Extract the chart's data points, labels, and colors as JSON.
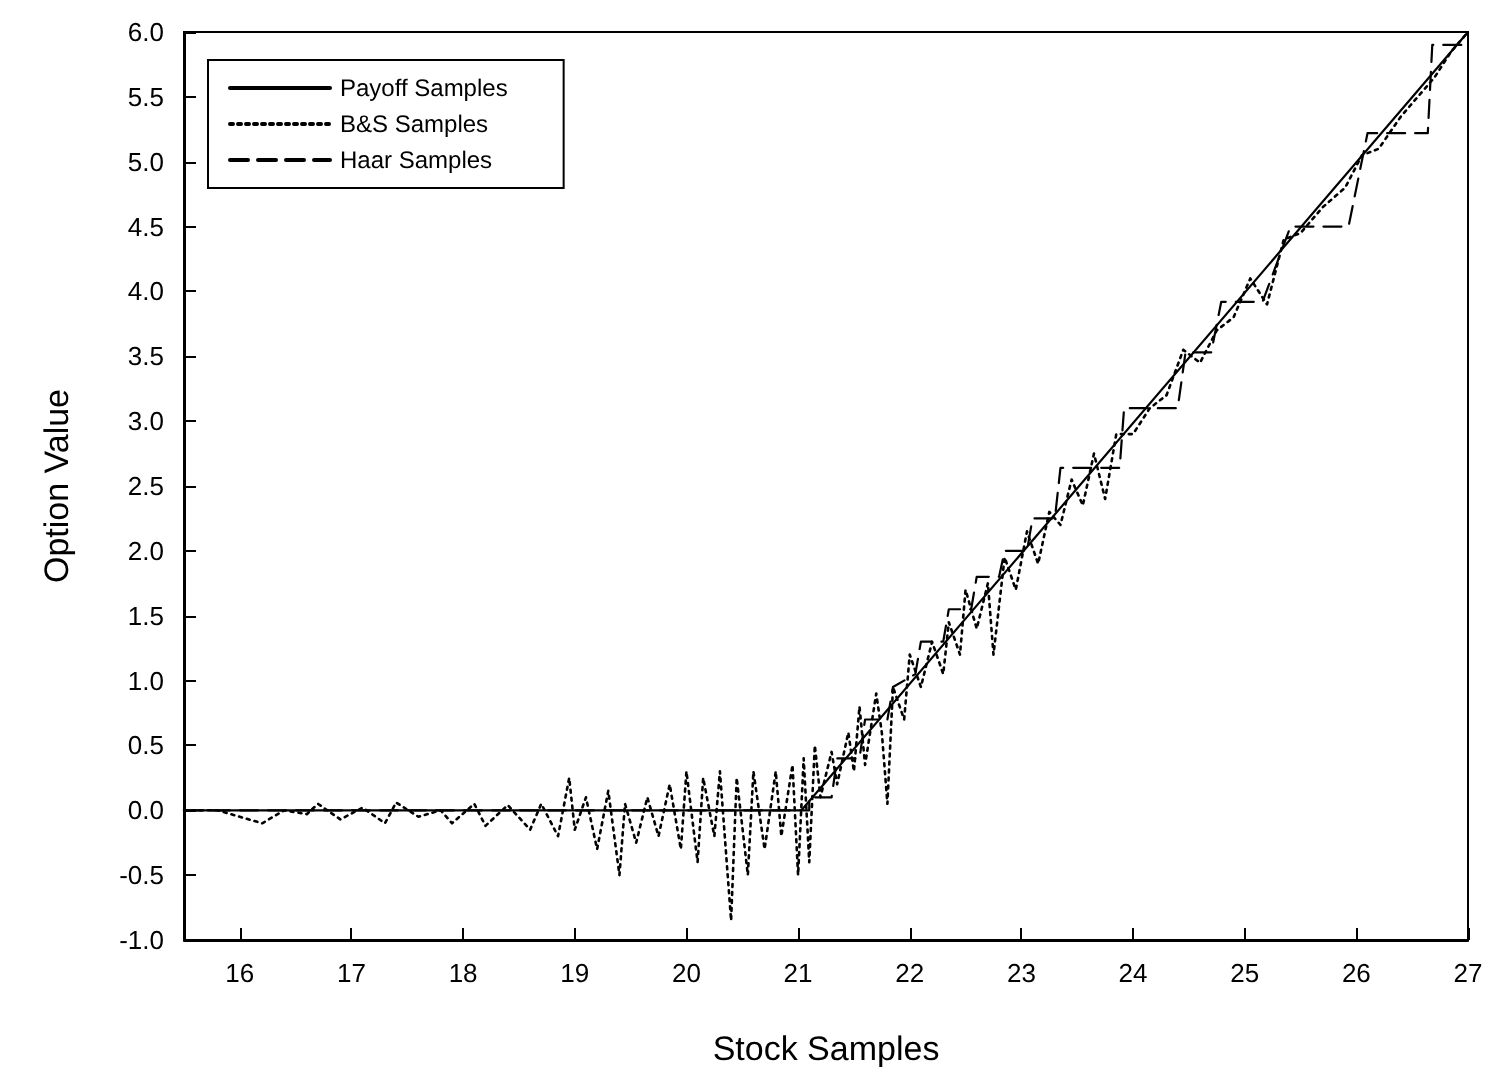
{
  "chart_data": {
    "type": "line",
    "xlabel": "Stock Samples",
    "ylabel": "Option Value",
    "xlim": [
      15.5,
      27
    ],
    "xticks": [
      16,
      17,
      18,
      19,
      20,
      21,
      22,
      23,
      24,
      25,
      26,
      27
    ],
    "ylim": [
      -1.0,
      6.0
    ],
    "yticks": [
      {
        "value": -1,
        "label": "-1.0"
      },
      {
        "value": -0.5,
        "label": "-0.5"
      },
      {
        "value": 0,
        "label": "0.0"
      },
      {
        "value": 0.5,
        "label": "0.5"
      },
      {
        "value": 1,
        "label": "1.0"
      },
      {
        "value": 1.5,
        "label": "1.5"
      },
      {
        "value": 2,
        "label": "2.0"
      },
      {
        "value": 2.5,
        "label": "2.5"
      },
      {
        "value": 3,
        "label": "3.0"
      },
      {
        "value": 3.5,
        "label": "3.5"
      },
      {
        "value": 4,
        "label": "4.0"
      },
      {
        "value": 4.5,
        "label": "4.5"
      },
      {
        "value": 5,
        "label": "5.0"
      },
      {
        "value": 5.5,
        "label": "5.5"
      },
      {
        "value": 6,
        "label": "6.0"
      }
    ],
    "grid": false,
    "legend": "top left",
    "marker": "none",
    "series": [
      {
        "name": "Payoff Samples",
        "color": "#000000",
        "line_style": "solid",
        "x": [
          15.5,
          21.03,
          27
        ],
        "values": [
          0,
          0,
          6
        ]
      },
      {
        "name": "B&S Samples",
        "color": "#000000",
        "line_style": "dotted",
        "x": [
          15.5,
          15.8,
          16.0,
          16.2,
          16.4,
          16.6,
          16.7,
          16.9,
          17.1,
          17.3,
          17.4,
          17.6,
          17.8,
          17.9,
          18.1,
          18.2,
          18.4,
          18.6,
          18.7,
          18.85,
          18.95,
          19.0,
          19.1,
          19.2,
          19.3,
          19.4,
          19.45,
          19.55,
          19.65,
          19.75,
          19.85,
          19.95,
          20.0,
          20.1,
          20.15,
          20.25,
          20.3,
          20.4,
          20.45,
          20.55,
          20.6,
          20.7,
          20.8,
          20.85,
          20.95,
          21.0,
          21.05,
          21.1,
          21.15,
          21.2,
          21.3,
          21.35,
          21.45,
          21.5,
          21.55,
          21.6,
          21.7,
          21.75,
          21.8,
          21.85,
          21.95,
          22.0,
          22.1,
          22.2,
          22.3,
          22.35,
          22.45,
          22.5,
          22.6,
          22.7,
          22.75,
          22.85,
          22.95,
          23.05,
          23.15,
          23.25,
          23.35,
          23.45,
          23.55,
          23.65,
          23.75,
          23.85,
          24.0,
          24.15,
          24.3,
          24.45,
          24.6,
          24.75,
          24.9,
          25.05,
          25.2,
          25.35,
          25.5,
          25.7,
          25.9,
          26.05,
          26.2,
          26.4,
          26.55,
          26.7,
          26.85,
          27.0
        ],
        "values": [
          0,
          0,
          -0.05,
          -0.1,
          0,
          -0.03,
          0.05,
          -0.07,
          0.02,
          -0.1,
          0.06,
          -0.05,
          0,
          -0.1,
          0.05,
          -0.12,
          0.04,
          -0.15,
          0.05,
          -0.2,
          0.25,
          -0.15,
          0.1,
          -0.3,
          0.15,
          -0.5,
          0.05,
          -0.25,
          0.1,
          -0.2,
          0.2,
          -0.3,
          0.3,
          -0.4,
          0.25,
          -0.2,
          0.3,
          -0.85,
          0.25,
          -0.5,
          0.3,
          -0.3,
          0.3,
          -0.2,
          0.35,
          -0.5,
          0.4,
          -0.4,
          0.5,
          0.1,
          0.45,
          0.2,
          0.6,
          0.3,
          0.8,
          0.35,
          0.9,
          0.6,
          0.05,
          0.95,
          0.7,
          1.2,
          0.95,
          1.3,
          1.05,
          1.45,
          1.2,
          1.7,
          1.4,
          1.75,
          1.2,
          1.95,
          1.7,
          2.15,
          1.9,
          2.3,
          2.2,
          2.55,
          2.35,
          2.75,
          2.4,
          2.9,
          2.9,
          3.1,
          3.2,
          3.55,
          3.45,
          3.7,
          3.8,
          4.1,
          3.9,
          4.4,
          4.45,
          4.65,
          4.8,
          5.05,
          5.1,
          5.35,
          5.5,
          5.65,
          5.85,
          6.0
        ]
      },
      {
        "name": "Haar Samples",
        "color": "#000000",
        "line_style": "dashed",
        "x": [
          15.5,
          21.1,
          21.1,
          21.3,
          21.35,
          21.55,
          21.6,
          21.8,
          21.85,
          22.05,
          22.1,
          22.3,
          22.35,
          22.55,
          22.6,
          22.8,
          22.85,
          23.05,
          23.1,
          23.3,
          23.35,
          23.88,
          23.92,
          24.4,
          24.47,
          24.7,
          24.79,
          25.16,
          25.41,
          25.93,
          26.1,
          26.64,
          26.68,
          27
        ],
        "values": [
          0,
          0,
          0.1,
          0.1,
          0.4,
          0.4,
          0.7,
          0.7,
          0.95,
          1.05,
          1.3,
          1.3,
          1.55,
          1.55,
          1.8,
          1.8,
          2.0,
          2.0,
          2.25,
          2.25,
          2.64,
          2.64,
          3.1,
          3.1,
          3.53,
          3.53,
          3.92,
          3.92,
          4.5,
          4.5,
          5.22,
          5.22,
          5.9,
          5.9
        ]
      }
    ]
  }
}
